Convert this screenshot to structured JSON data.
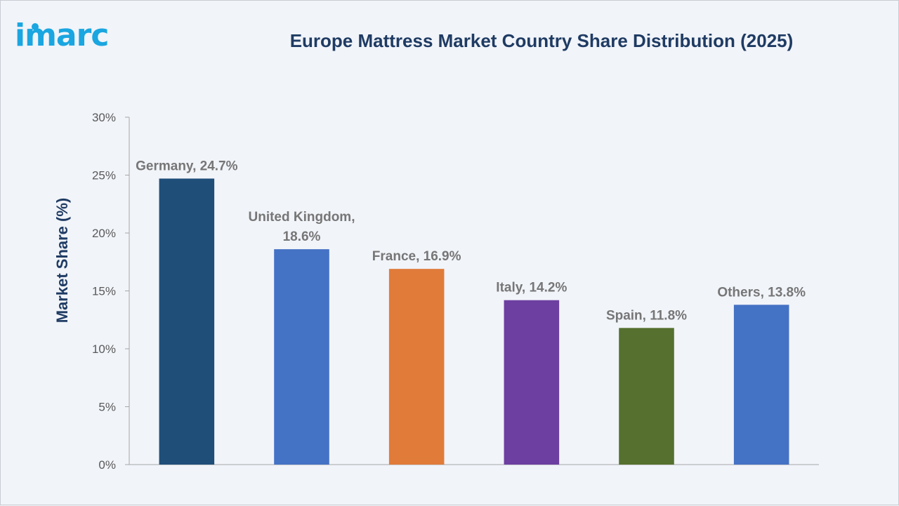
{
  "brand": {
    "logo_text": "imarc",
    "logo_color": "#1aa6e0"
  },
  "chart_data": {
    "type": "bar",
    "title": "Europe Mattress Market Country Share Distribution (2025)",
    "xlabel": "",
    "ylabel": "Market Share (%)",
    "ylim": [
      0,
      30
    ],
    "yticks": [
      0,
      5,
      10,
      15,
      20,
      25,
      30
    ],
    "ytick_labels": [
      "0%",
      "5%",
      "10%",
      "15%",
      "20%",
      "25%",
      "30%"
    ],
    "categories": [
      "Germany",
      "United Kingdom",
      "France",
      "Italy",
      "Spain",
      "Others"
    ],
    "values": [
      24.7,
      18.6,
      16.9,
      14.2,
      11.8,
      13.8
    ],
    "data_labels": [
      [
        "Germany, 24.7%"
      ],
      [
        "United Kingdom,",
        "18.6%"
      ],
      [
        "France, 16.9%"
      ],
      [
        "Italy, 14.2%"
      ],
      [
        "Spain, 11.8%"
      ],
      [
        "Others, 13.8%"
      ]
    ],
    "colors": [
      "#1f4e79",
      "#4472c4",
      "#e07b39",
      "#6d3fa0",
      "#55702f",
      "#4472c4"
    ],
    "grid": false,
    "legend": "none"
  }
}
